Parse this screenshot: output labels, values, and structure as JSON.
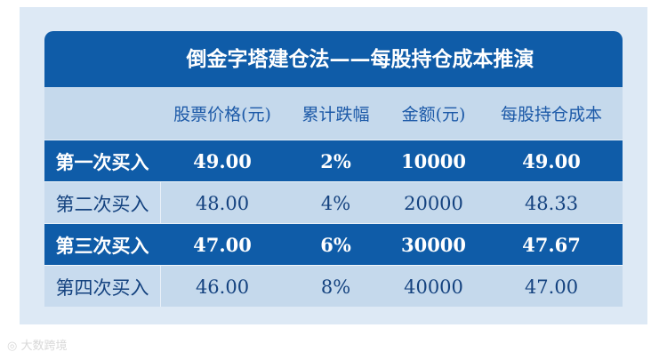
{
  "title": "倒金字塔建仓法——每股持仓成本推演",
  "table": {
    "header": [
      "股票价格(元)",
      "累计跌幅",
      "金额(元)",
      "每股持仓成本"
    ],
    "rows": [
      [
        "第一次买入",
        "49.00",
        "2%",
        "10000",
        "49.00"
      ],
      [
        "第二次买入",
        "48.00",
        "4%",
        "20000",
        "48.33"
      ],
      [
        "第三次买入",
        "47.00",
        "6%",
        "30000",
        "47.67"
      ],
      [
        "第四次买入",
        "46.00",
        "8%",
        "40000",
        "47.00"
      ]
    ]
  },
  "watermark": "大数跨境"
}
